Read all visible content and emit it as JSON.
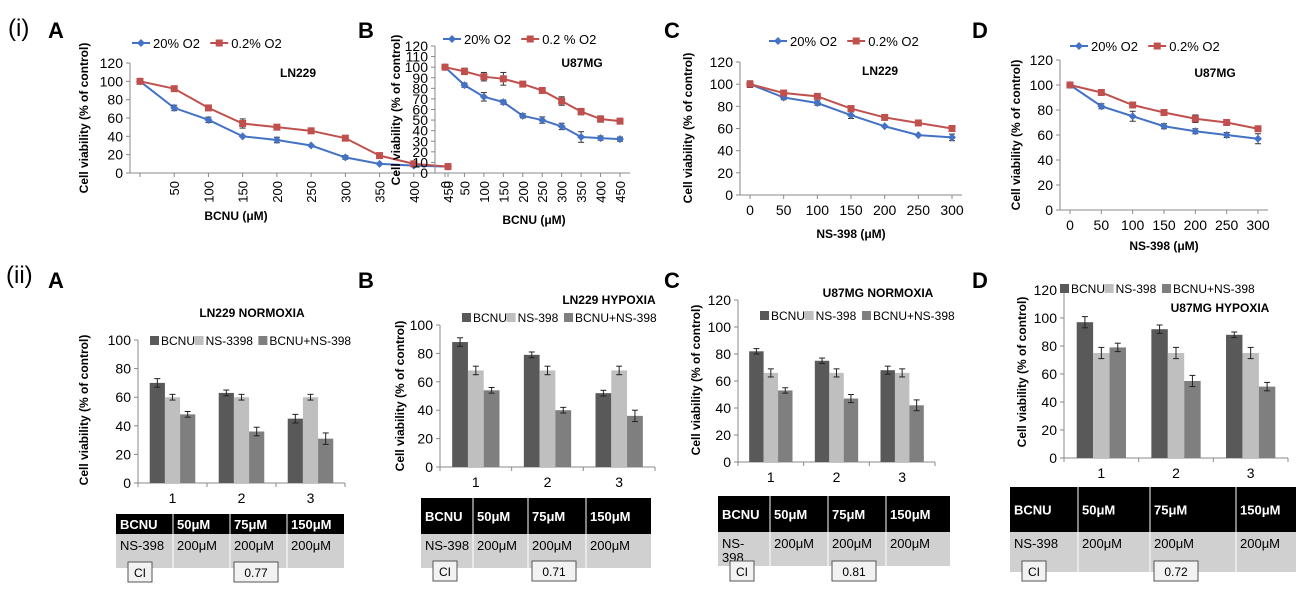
{
  "rows": [
    {
      "label": "(i)"
    },
    {
      "label": "(ii)"
    }
  ],
  "chart_data": [
    {
      "id": "iA",
      "panel_letter": "A",
      "type": "line",
      "title": "LN229",
      "xlabel": "BCNU (μM)",
      "ylabel": "Cell viability (% of control)",
      "ylim": [
        0,
        120
      ],
      "yticks": [
        0,
        20,
        40,
        60,
        80,
        100,
        120
      ],
      "x": [
        0,
        50,
        100,
        150,
        200,
        250,
        300,
        350,
        400,
        450
      ],
      "xtick_labels": [
        "",
        "50",
        "100",
        "150",
        "200",
        "250",
        "300",
        "350",
        "400",
        "450"
      ],
      "rotate_xticks": true,
      "legend": "top",
      "series": [
        {
          "name": "20% O2",
          "color": "#4472C4",
          "marker": "diamond",
          "values": [
            100,
            71,
            58,
            40,
            36,
            30,
            17,
            10,
            8,
            7
          ],
          "errors": [
            0,
            3,
            3,
            0,
            3,
            0,
            2,
            0,
            0,
            0
          ]
        },
        {
          "name": "0.2% O2",
          "color": "#C0504D",
          "marker": "square",
          "values": [
            100,
            92,
            71,
            54,
            50,
            46,
            38,
            19,
            10,
            7
          ],
          "errors": [
            2,
            0,
            2,
            5,
            0,
            2,
            0,
            0,
            0,
            3
          ]
        }
      ]
    },
    {
      "id": "iB",
      "panel_letter": "B",
      "type": "line",
      "title": "U87MG",
      "xlabel": "BCNU (μM)",
      "ylabel": "Cell viability (% of control)",
      "ylim": [
        0,
        120
      ],
      "yticks": [
        0,
        10,
        20,
        30,
        40,
        50,
        60,
        70,
        80,
        90,
        100,
        110,
        120
      ],
      "x": [
        0,
        50,
        100,
        150,
        200,
        250,
        300,
        350,
        400,
        450
      ],
      "xtick_labels": [
        "0",
        "50",
        "100",
        "150",
        "200",
        "250",
        "300",
        "350",
        "400",
        "450"
      ],
      "rotate_xticks": true,
      "legend": "top",
      "series": [
        {
          "name": "20% O2",
          "color": "#4472C4",
          "marker": "diamond",
          "values": [
            100,
            83,
            72,
            67,
            54,
            50,
            44,
            34,
            33,
            32
          ],
          "errors": [
            0,
            2,
            4,
            2,
            2,
            3,
            3,
            5,
            2,
            2
          ]
        },
        {
          "name": "0.2 % O2",
          "color": "#C0504D",
          "marker": "square",
          "values": [
            100,
            96,
            91,
            89,
            84,
            78,
            68,
            58,
            51,
            49
          ],
          "errors": [
            2,
            3,
            4,
            6,
            2,
            2,
            4,
            3,
            3,
            1
          ]
        }
      ]
    },
    {
      "id": "iC",
      "panel_letter": "C",
      "type": "line",
      "title": "LN229",
      "xlabel": "NS-398 (μM)",
      "ylabel": "Cell viability (% of control)",
      "ylim": [
        0,
        120
      ],
      "yticks": [
        0,
        20,
        40,
        60,
        80,
        100,
        120
      ],
      "x": [
        0,
        50,
        100,
        150,
        200,
        250,
        300
      ],
      "xtick_labels": [
        "0",
        "50",
        "100",
        "150",
        "200",
        "250",
        "300"
      ],
      "rotate_xticks": false,
      "legend": "top",
      "series": [
        {
          "name": "20% O2",
          "color": "#4472C4",
          "marker": "diamond",
          "values": [
            100,
            88,
            83,
            72,
            62,
            54,
            52
          ],
          "errors": [
            0,
            2,
            2,
            3,
            0,
            0,
            3
          ]
        },
        {
          "name": "0.2% O2",
          "color": "#C0504D",
          "marker": "square",
          "values": [
            100,
            92,
            89,
            78,
            70,
            65,
            60
          ],
          "errors": [
            3,
            2,
            0,
            2,
            0,
            0,
            2
          ]
        }
      ]
    },
    {
      "id": "iD",
      "panel_letter": "D",
      "type": "line",
      "title": "U87MG",
      "xlabel": "NS-398 (μM)",
      "ylabel": "Cell viability (% of control)",
      "ylim": [
        0,
        120
      ],
      "yticks": [
        0,
        20,
        40,
        60,
        80,
        100,
        120
      ],
      "x": [
        0,
        50,
        100,
        150,
        200,
        250,
        300
      ],
      "xtick_labels": [
        "0",
        "50",
        "100",
        "150",
        "200",
        "250",
        "300"
      ],
      "rotate_xticks": false,
      "legend": "top",
      "series": [
        {
          "name": "20% O2",
          "color": "#4472C4",
          "marker": "diamond",
          "values": [
            100,
            83,
            75,
            67,
            63,
            60,
            57
          ],
          "errors": [
            2,
            2,
            4,
            2,
            2,
            2,
            4
          ]
        },
        {
          "name": "0.2% O2",
          "color": "#C0504D",
          "marker": "square",
          "values": [
            100,
            94,
            84,
            78,
            73,
            70,
            65
          ],
          "errors": [
            2,
            2,
            0,
            2,
            3,
            2,
            2
          ]
        }
      ]
    },
    {
      "id": "iiA",
      "panel_letter": "A",
      "type": "bar",
      "title": "LN229  NORMOXIA",
      "xlabel": "",
      "ylabel": "Cell viability (% of control)",
      "ylim": [
        0,
        100
      ],
      "yticks": [
        0,
        20,
        40,
        60,
        80,
        100
      ],
      "categories": [
        "1",
        "2",
        "3"
      ],
      "series": [
        {
          "name": "BCNU",
          "color": "#595959",
          "values": [
            70,
            63,
            45
          ],
          "errors": [
            3,
            2,
            3
          ]
        },
        {
          "name": "NS-3398",
          "color": "#BFBFBF",
          "values": [
            60,
            60,
            60
          ],
          "errors": [
            2,
            2,
            2
          ]
        },
        {
          "name": "BCNU+NS-398",
          "color": "#7F7F7F",
          "values": [
            48,
            36,
            31
          ],
          "errors": [
            2,
            3,
            4
          ]
        }
      ],
      "table": {
        "header": [
          "BCNU",
          "50μM",
          "75μM",
          "150μM"
        ],
        "row": [
          "NS-398",
          "200μM",
          "200μM",
          "200μM"
        ],
        "ci_label": "CI",
        "ci_value": "0.77"
      }
    },
    {
      "id": "iiB",
      "panel_letter": "B",
      "type": "bar",
      "title": "LN229 HYPOXIA",
      "xlabel": "",
      "ylabel": "Cell viability (%  of control)",
      "ylim": [
        0,
        100
      ],
      "yticks": [
        0,
        20,
        40,
        60,
        80,
        100
      ],
      "categories": [
        "1",
        "2",
        "3"
      ],
      "series": [
        {
          "name": "BCNU",
          "color": "#595959",
          "values": [
            88,
            79,
            52
          ],
          "errors": [
            3,
            2,
            2
          ]
        },
        {
          "name": "NS-398",
          "color": "#BFBFBF",
          "values": [
            68,
            68,
            68
          ],
          "errors": [
            3,
            3,
            3
          ]
        },
        {
          "name": "BCNU+NS-398",
          "color": "#7F7F7F",
          "values": [
            54,
            40,
            36
          ],
          "errors": [
            2,
            2,
            4
          ]
        }
      ],
      "table": {
        "header": [
          "BCNU",
          "50μM",
          "75μM",
          "150μM"
        ],
        "row": [
          "NS-398",
          "200μM",
          "200μM",
          "200μM"
        ],
        "ci_label": "CI",
        "ci_value": "0.71"
      }
    },
    {
      "id": "iiC",
      "panel_letter": "C",
      "type": "bar",
      "title": "U87MG  NORMOXIA",
      "xlabel": "",
      "ylabel": "Cell viability (% of control)",
      "ylim": [
        0,
        120
      ],
      "yticks": [
        0,
        20,
        40,
        60,
        80,
        100,
        120
      ],
      "categories": [
        "1",
        "2",
        "3"
      ],
      "series": [
        {
          "name": "BCNU",
          "color": "#595959",
          "values": [
            82,
            75,
            68
          ],
          "errors": [
            2,
            2,
            3
          ]
        },
        {
          "name": "NS-398",
          "color": "#BFBFBF",
          "values": [
            66,
            66,
            66
          ],
          "errors": [
            3,
            3,
            3
          ]
        },
        {
          "name": "BCNU+NS-398",
          "color": "#7F7F7F",
          "values": [
            53,
            47,
            42
          ],
          "errors": [
            2,
            3,
            4
          ]
        }
      ],
      "table": {
        "header": [
          "BCNU",
          "50μM",
          "75μM",
          "150μM"
        ],
        "row": [
          "NS-\n398",
          "200μM",
          "200μM",
          "200μM"
        ],
        "ci_label": "CI",
        "ci_value": "0.81"
      }
    },
    {
      "id": "iiD",
      "panel_letter": "D",
      "type": "bar",
      "title": "U87MG HYPOXIA",
      "xlabel": "",
      "ylabel": "Cell viability (% of control)",
      "ylim": [
        0,
        120
      ],
      "yticks": [
        0,
        20,
        40,
        60,
        80,
        100,
        120
      ],
      "categories": [
        "1",
        "2",
        "3"
      ],
      "series": [
        {
          "name": "BCNU",
          "color": "#595959",
          "values": [
            97,
            92,
            88
          ],
          "errors": [
            4,
            3,
            2
          ]
        },
        {
          "name": "NS-398",
          "color": "#BFBFBF",
          "values": [
            75,
            75,
            75
          ],
          "errors": [
            4,
            4,
            4
          ]
        },
        {
          "name": "BCNU+NS-398",
          "color": "#7F7F7F",
          "values": [
            79,
            55,
            51
          ],
          "errors": [
            3,
            4,
            3
          ]
        }
      ],
      "table": {
        "header": [
          "BCNU",
          "50μM",
          "75μM",
          "150μM"
        ],
        "row": [
          "NS-398",
          "200μM",
          "200μM",
          "200μM"
        ],
        "ci_label": "CI",
        "ci_value": "0.72"
      }
    }
  ]
}
